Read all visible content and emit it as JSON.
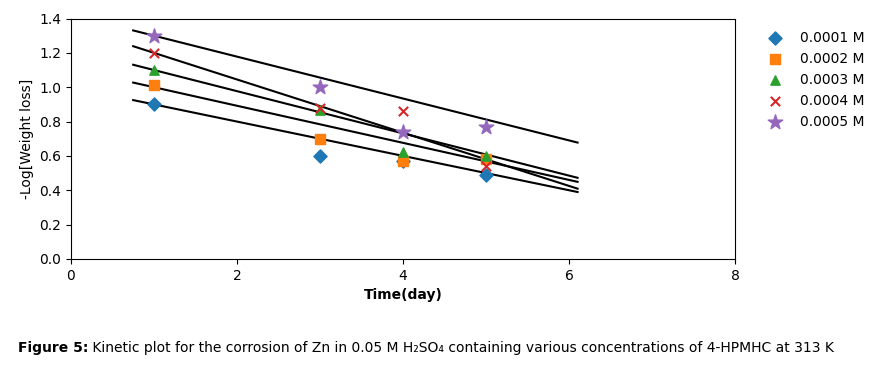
{
  "chart_data": {
    "type": "scatter",
    "x_label": "Time(day)",
    "y_label": "-Log[Weight loss]",
    "annotations": [
      "Figure 5:",
      " Kinetic plot for the corrosion of Zn in 0.05 M H₂SO₄ containing various concentrations of 4-HPMHC at 313 K"
    ],
    "xlim": [
      0,
      8
    ],
    "ylim": [
      0,
      1.4
    ],
    "xticks": [
      0,
      2,
      4,
      6,
      8
    ],
    "yticks": [
      {
        "value": 0,
        "label": "0.0"
      },
      0.2,
      0.4,
      0.6,
      0.8,
      {
        "value": 1,
        "label": "1.0"
      },
      1.2,
      1.4
    ],
    "legend": "upper left",
    "series": [
      {
        "name": "0.0001 M",
        "marker": "diamond",
        "x": [
          1,
          3,
          4,
          5
        ],
        "values": [
          0.9,
          0.6,
          0.57,
          0.49
        ]
      },
      {
        "name": "0.0002 M",
        "marker": "square",
        "x": [
          1,
          3,
          4,
          5
        ],
        "values": [
          1.01,
          0.7,
          0.57,
          0.58
        ]
      },
      {
        "name": "0.0003 M",
        "marker": "triangle",
        "x": [
          1,
          3,
          4,
          5
        ],
        "values": [
          1.1,
          0.87,
          0.62,
          0.6
        ]
      },
      {
        "name": "0.0004 M",
        "marker": "x",
        "x": [
          1,
          3,
          4,
          5
        ],
        "values": [
          1.2,
          0.88,
          0.86,
          0.54
        ]
      },
      {
        "name": "0.0005 M",
        "marker": "star",
        "x": [
          1,
          3,
          4,
          5
        ],
        "values": [
          1.3,
          1.0,
          0.74,
          0.77
        ]
      },
      {
        "type": "line",
        "color": "#000000",
        "x": [
          0.75,
          6.1
        ],
        "values": [
          0.925,
          0.39
        ]
      },
      {
        "type": "line",
        "color": "#000000",
        "x": [
          0.75,
          6.1
        ],
        "values": [
          1.027,
          0.4492
        ]
      },
      {
        "type": "line",
        "color": "#000000",
        "x": [
          0.75,
          6.1
        ],
        "values": [
          1.13075,
          0.4727
        ]
      },
      {
        "type": "line",
        "color": "#000000",
        "x": [
          0.75,
          6.1
        ],
        "values": [
          1.23875,
          0.4095
        ]
      },
      {
        "type": "line",
        "color": "#000000",
        "x": [
          0.75,
          6.1
        ],
        "values": [
          1.3305,
          0.6778
        ]
      }
    ]
  }
}
